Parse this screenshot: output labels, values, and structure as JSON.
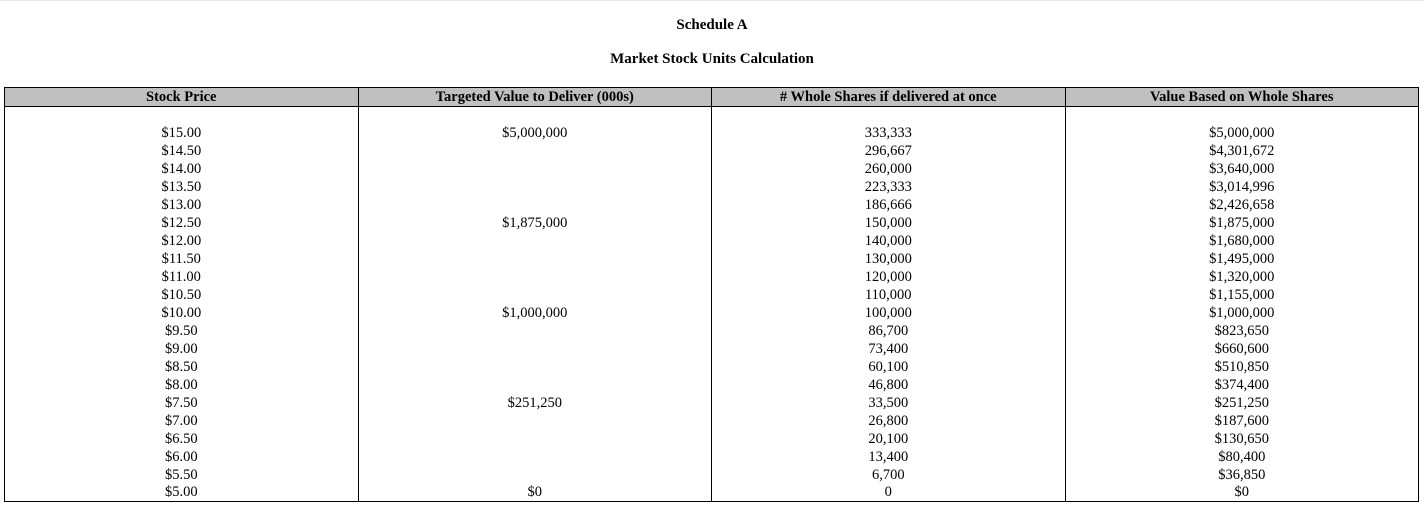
{
  "document": {
    "title": "Schedule A",
    "subtitle": "Market Stock Units Calculation"
  },
  "table": {
    "headers": [
      "Stock Price",
      "Targeted Value to Deliver (000s)",
      "# Whole Shares if delivered at once",
      "Value Based on Whole Shares"
    ],
    "rows": [
      [
        "$15.00",
        "$5,000,000",
        "333,333",
        "$5,000,000"
      ],
      [
        "$14.50",
        "",
        "296,667",
        "$4,301,672"
      ],
      [
        "$14.00",
        "",
        "260,000",
        "$3,640,000"
      ],
      [
        "$13.50",
        "",
        "223,333",
        "$3,014,996"
      ],
      [
        "$13.00",
        "",
        "186,666",
        "$2,426,658"
      ],
      [
        "$12.50",
        "$1,875,000",
        "150,000",
        "$1,875,000"
      ],
      [
        "$12.00",
        "",
        "140,000",
        "$1,680,000"
      ],
      [
        "$11.50",
        "",
        "130,000",
        "$1,495,000"
      ],
      [
        "$11.00",
        "",
        "120,000",
        "$1,320,000"
      ],
      [
        "$10.50",
        "",
        "110,000",
        "$1,155,000"
      ],
      [
        "$10.00",
        "$1,000,000",
        "100,000",
        "$1,000,000"
      ],
      [
        "$9.50",
        "",
        "86,700",
        "$823,650"
      ],
      [
        "$9.00",
        "",
        "73,400",
        "$660,600"
      ],
      [
        "$8.50",
        "",
        "60,100",
        "$510,850"
      ],
      [
        "$8.00",
        "",
        "46,800",
        "$374,400"
      ],
      [
        "$7.50",
        "$251,250",
        "33,500",
        "$251,250"
      ],
      [
        "$7.00",
        "",
        "26,800",
        "$187,600"
      ],
      [
        "$6.50",
        "",
        "20,100",
        "$130,650"
      ],
      [
        "$6.00",
        "",
        "13,400",
        "$80,400"
      ],
      [
        "$5.50",
        "",
        "6,700",
        "$36,850"
      ],
      [
        "$5.00",
        "$0",
        "0",
        "$0"
      ]
    ]
  }
}
